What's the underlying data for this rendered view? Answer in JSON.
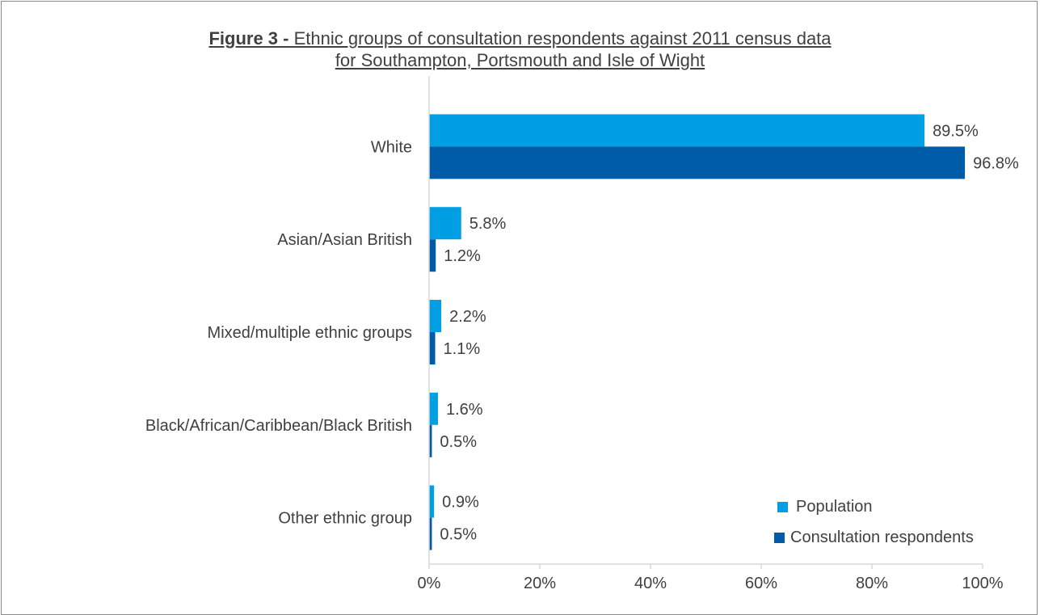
{
  "chart_data": {
    "type": "bar",
    "orientation": "horizontal",
    "title_prefix": "Figure 3 -",
    "title_line1": " Ethnic groups of consultation respondents against 2011 census data",
    "title_line2": "for Southampton, Portsmouth and Isle of Wight",
    "categories": [
      "White",
      "Asian/Asian British",
      "Mixed/multiple ethnic groups",
      "Black/African/Caribbean/Black British",
      "Other ethnic group"
    ],
    "series": [
      {
        "name": "Population",
        "color": "#009fe3",
        "values": [
          89.5,
          5.8,
          2.2,
          1.6,
          0.9
        ],
        "labels": [
          "89.5%",
          "5.8%",
          "2.2%",
          "1.6%",
          "0.9%"
        ]
      },
      {
        "name": "Consultation respondents",
        "color": "#005ca9",
        "values": [
          96.8,
          1.2,
          1.1,
          0.5,
          0.5
        ],
        "labels": [
          "96.8%",
          "1.2%",
          "1.1%",
          "0.5%",
          "0.5%"
        ]
      }
    ],
    "xlim": [
      0,
      100
    ],
    "xticks": [
      0,
      20,
      40,
      60,
      80,
      100
    ],
    "xtick_labels": [
      "0%",
      "20%",
      "40%",
      "60%",
      "80%",
      "100%"
    ],
    "grid": false,
    "legend_position": "bottom-right"
  }
}
